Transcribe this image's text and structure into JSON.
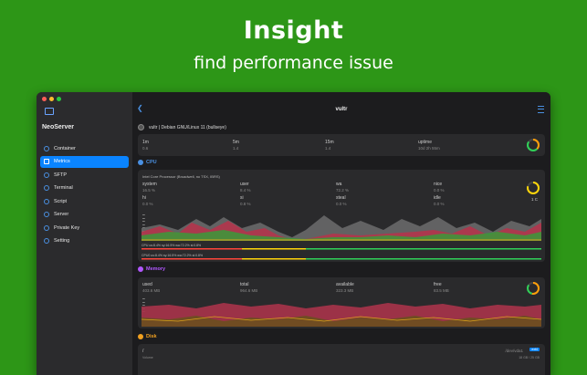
{
  "hero": {
    "title": "Insight",
    "subtitle": "find performance issue"
  },
  "colors": {
    "background": "#2d9617",
    "accent": "#0a84ff",
    "cpu": "#4a90e2",
    "memory": "#b157ff",
    "disk": "#f0a020"
  },
  "window": {
    "title": "vultr",
    "app_name": "NeoServer",
    "server_label": "vultr | Debian GNU/Linux 11 (bullseye)"
  },
  "sidebar": {
    "items": [
      {
        "label": "Container",
        "icon": "container-icon"
      },
      {
        "label": "Metrics",
        "icon": "metrics-icon",
        "active": true
      },
      {
        "label": "SFTP",
        "icon": "folder-icon"
      },
      {
        "label": "Terminal",
        "icon": "terminal-icon"
      },
      {
        "label": "Script",
        "icon": "script-icon"
      },
      {
        "label": "Server",
        "icon": "server-icon"
      },
      {
        "label": "Private Key",
        "icon": "key-icon"
      },
      {
        "label": "Setting",
        "icon": "gear-icon"
      }
    ]
  },
  "load": {
    "m1_label": "1m",
    "m1_value": "0.6",
    "m5_label": "5m",
    "m5_value": "1.4",
    "m15_label": "15m",
    "m15_value": "1.4",
    "uptime_label": "uptime",
    "uptime_value": "10d 2h 55m"
  },
  "cpu": {
    "title": "CPU",
    "model": "Intel Core Processor (Broadwell, no TSX, IBRS)",
    "system_label": "system",
    "system_value": "16.5 %",
    "user_label": "user",
    "user_value": "8.4 %",
    "wa_label": "wa",
    "wa_value": "72.2 %",
    "nice_label": "nice",
    "nice_value": "0.0 %",
    "hi_label": "hi",
    "hi_value": "0.0 %",
    "si_label": "si",
    "si_value": "0.8 %",
    "steal_label": "steal",
    "steal_value": "0.0 %",
    "idle_label": "idle",
    "idle_value": "0.0 %",
    "cores": "1 C",
    "line1": "CPU us:8.4% sy:16.5% wa:72.2% si:0.8%",
    "line2": "CPU0 us:8.4% sy:16.5% wa:72.2% si:0.8%"
  },
  "memory": {
    "title": "Memory",
    "used_label": "used",
    "used_value": "403.6 MB",
    "total_label": "total",
    "total_value": "964.6 MB",
    "available_label": "available",
    "available_value": "323.3 MB",
    "free_label": "free",
    "free_value": "83.5 MB"
  },
  "disk": {
    "title": "Disk",
    "mount": "/",
    "device": "/dev/vda1",
    "fs_badge": "ext4",
    "volume_label": "Volume",
    "size_text": "18 GB / 25 GB"
  }
}
